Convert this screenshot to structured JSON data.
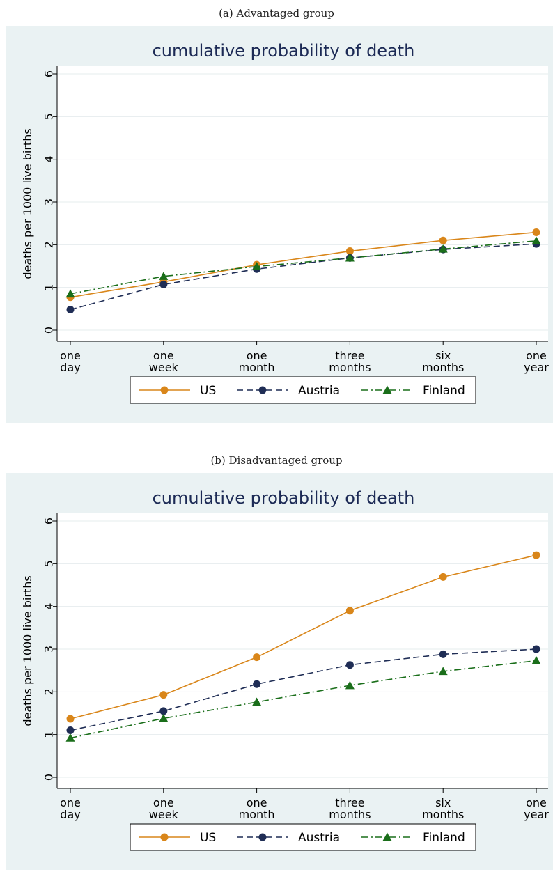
{
  "captions": [
    "(a) Advantaged group",
    "(b) Disadvantaged group"
  ],
  "colors": {
    "US": "#d9861a",
    "Austria": "#1f2d55",
    "Finland": "#1a6e1a",
    "background": "#eaf2f3",
    "plot_bg": "#ffffff",
    "grid": "#e6ecee"
  },
  "chart_data": [
    {
      "type": "line",
      "title": "cumulative probability of death",
      "xlabel": "",
      "ylabel": "deaths per 1000 live births",
      "categories": [
        [
          "one",
          "day"
        ],
        [
          "one",
          "week"
        ],
        [
          "one",
          "month"
        ],
        [
          "three",
          "months"
        ],
        [
          "six",
          "months"
        ],
        [
          "one",
          "year"
        ]
      ],
      "ylim": [
        0,
        6
      ],
      "yticks": [
        0,
        1,
        2,
        3,
        4,
        5,
        6
      ],
      "grid": true,
      "legend": "bottom",
      "series": [
        {
          "name": "US",
          "marker": "circle",
          "dash": "solid",
          "values": [
            0.77,
            1.13,
            1.53,
            1.85,
            2.1,
            2.29
          ]
        },
        {
          "name": "Austria",
          "marker": "circle",
          "dash": "dashed",
          "values": [
            0.48,
            1.07,
            1.43,
            1.69,
            1.89,
            2.02
          ]
        },
        {
          "name": "Finland",
          "marker": "triangle",
          "dash": "dashdot",
          "values": [
            0.85,
            1.26,
            1.49,
            1.69,
            1.9,
            2.09
          ]
        }
      ]
    },
    {
      "type": "line",
      "title": "cumulative probability of death",
      "xlabel": "",
      "ylabel": "deaths per 1000 live births",
      "categories": [
        [
          "one",
          "day"
        ],
        [
          "one",
          "week"
        ],
        [
          "one",
          "month"
        ],
        [
          "three",
          "months"
        ],
        [
          "six",
          "months"
        ],
        [
          "one",
          "year"
        ]
      ],
      "ylim": [
        0,
        6
      ],
      "yticks": [
        0,
        1,
        2,
        3,
        4,
        5,
        6
      ],
      "grid": true,
      "legend": "bottom",
      "series": [
        {
          "name": "US",
          "marker": "circle",
          "dash": "solid",
          "values": [
            1.37,
            1.93,
            2.81,
            3.9,
            4.69,
            5.2
          ]
        },
        {
          "name": "Austria",
          "marker": "circle",
          "dash": "dashed",
          "values": [
            1.1,
            1.55,
            2.18,
            2.63,
            2.88,
            3.0
          ]
        },
        {
          "name": "Finland",
          "marker": "triangle",
          "dash": "dashdot",
          "values": [
            0.92,
            1.38,
            1.76,
            2.15,
            2.48,
            2.73
          ]
        }
      ]
    }
  ]
}
